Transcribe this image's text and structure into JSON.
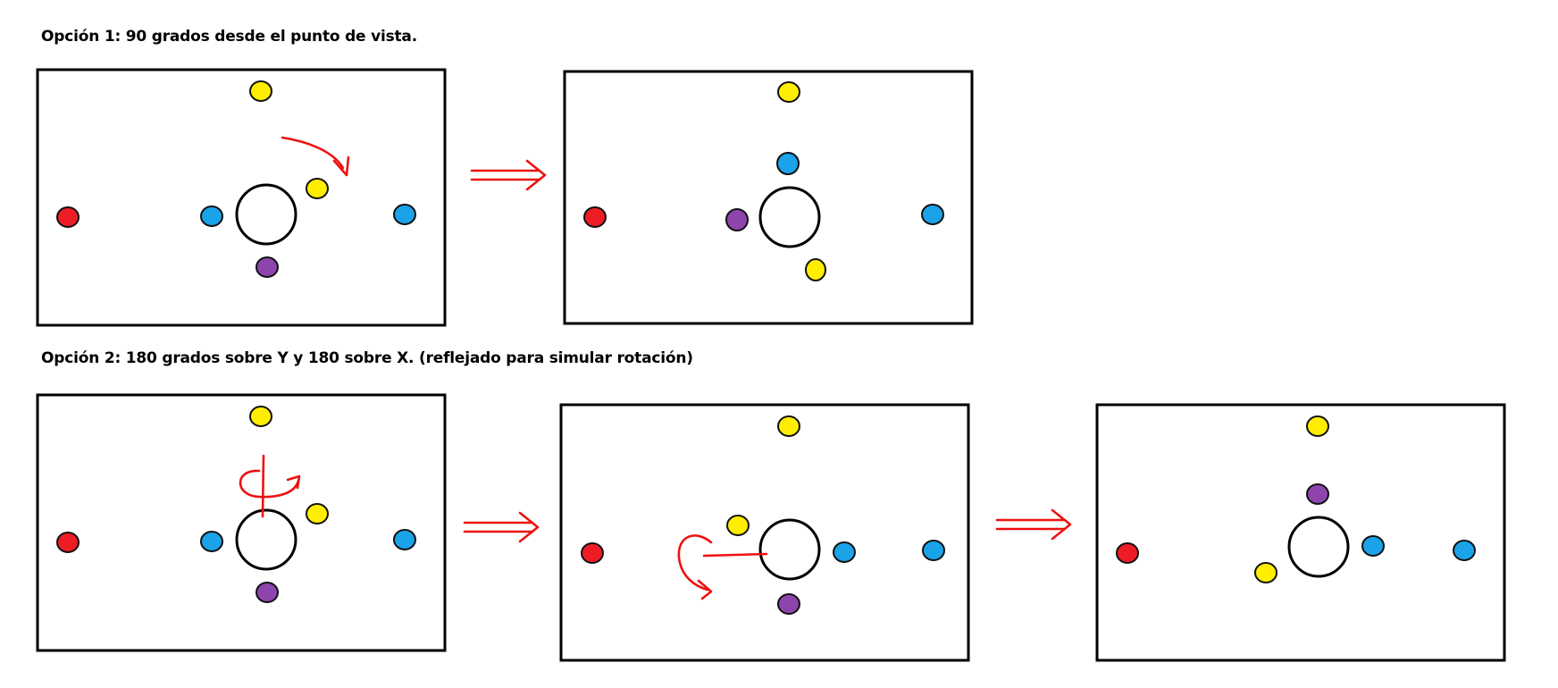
{
  "option1": {
    "heading": "Opción 1: 90 grados desde el punto de vista."
  },
  "option2": {
    "heading": "Opción 2: 180 grados sobre Y y 180 sobre X.  (reflejado para simular rotación)"
  },
  "colors": {
    "yellow": "#ffee00",
    "blue": "#1aa3e8",
    "red": "#ee1d25",
    "purple": "#8e44ad",
    "annotation": "#ee1111",
    "frame": "#000000"
  },
  "panels": [
    {
      "name": "opcion-1-antes",
      "dots": [
        "yellow-top",
        "red-left",
        "blue-inner-left",
        "yellow-inner-upper-right",
        "purple-inner-bottom",
        "blue-right"
      ]
    },
    {
      "name": "opcion-1-despues",
      "dots": [
        "yellow-top",
        "red-left",
        "blue-inner-top",
        "purple-inner-left",
        "yellow-inner-lower-right",
        "blue-right"
      ]
    },
    {
      "name": "opcion-2-inicio",
      "dots": [
        "yellow-top",
        "red-left",
        "blue-inner-left",
        "yellow-inner-upper-right",
        "purple-inner-bottom",
        "blue-right"
      ]
    },
    {
      "name": "opcion-2-paso-y",
      "dots": [
        "yellow-top",
        "red-left",
        "yellow-inner-upper-left",
        "blue-inner-right",
        "purple-inner-bottom",
        "blue-right"
      ]
    },
    {
      "name": "opcion-2-paso-x",
      "dots": [
        "yellow-top",
        "red-left",
        "purple-inner-top",
        "yellow-inner-lower-left",
        "blue-inner-right",
        "blue-right"
      ]
    }
  ]
}
